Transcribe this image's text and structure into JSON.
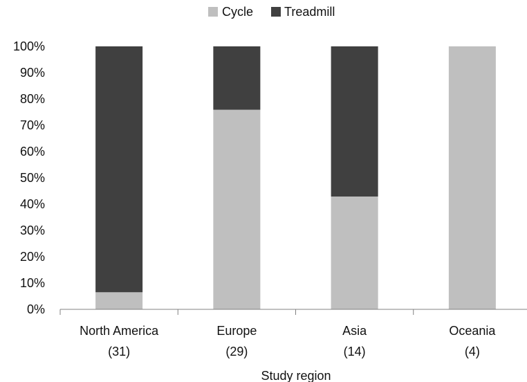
{
  "chart_data": {
    "type": "bar",
    "stacked": true,
    "categories": [
      "North America",
      "Europe",
      "Asia",
      "Oceania"
    ],
    "category_counts": [
      "(31)",
      "(29)",
      "(14)",
      "(4)"
    ],
    "series": [
      {
        "name": "Cycle",
        "values": [
          6.5,
          75.9,
          42.9,
          100
        ],
        "color": "#bfbfbf"
      },
      {
        "name": "Treadmill",
        "values": [
          93.5,
          24.1,
          57.1,
          0
        ],
        "color": "#404040"
      }
    ],
    "title": "",
    "xlabel": "Study region",
    "ylabel": "",
    "ylim": [
      0,
      100
    ],
    "yticks": [
      "0%",
      "10%",
      "20%",
      "30%",
      "40%",
      "50%",
      "60%",
      "70%",
      "80%",
      "90%",
      "100%"
    ],
    "legend_position": "top-center",
    "grid": false
  }
}
